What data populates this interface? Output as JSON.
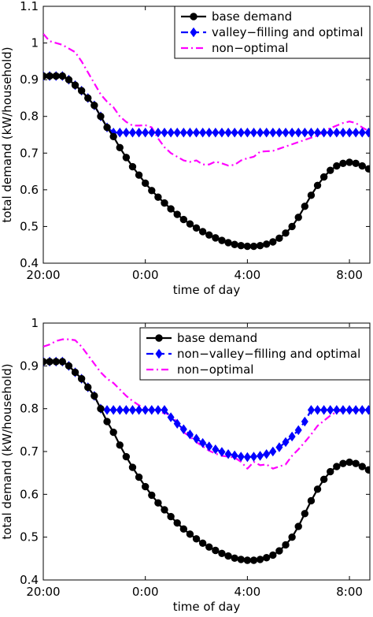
{
  "chart_data": [
    {
      "type": "line",
      "title": "",
      "xlabel": "time of day",
      "ylabel": "total demand (kW/household)",
      "xlim": [
        20,
        32.8
      ],
      "ylim": [
        0.4,
        1.1
      ],
      "x_ticks": [
        {
          "value": 20,
          "label": "20:00"
        },
        {
          "value": 24,
          "label": "0:00"
        },
        {
          "value": 28,
          "label": "4:00"
        },
        {
          "value": 32,
          "label": "8:00"
        }
      ],
      "y_ticks": [
        {
          "value": 0.4,
          "label": "0.4"
        },
        {
          "value": 0.5,
          "label": "0.5"
        },
        {
          "value": 0.6,
          "label": "0.6"
        },
        {
          "value": 0.7,
          "label": "0.7"
        },
        {
          "value": 0.8,
          "label": "0.8"
        },
        {
          "value": 0.9,
          "label": "0.9"
        },
        {
          "value": 1.0,
          "label": "1"
        },
        {
          "value": 1.1,
          "label": "1.1"
        }
      ],
      "grid": false,
      "legend_position": "top-right",
      "series": [
        {
          "name": "base demand",
          "color": "#000000",
          "marker": "circle",
          "style": "solid",
          "x": [
            20.0,
            20.25,
            20.5,
            20.75,
            21.0,
            21.25,
            21.5,
            21.75,
            22.0,
            22.25,
            22.5,
            22.75,
            23.0,
            23.25,
            23.5,
            23.75,
            24.0,
            24.25,
            24.5,
            24.75,
            25.0,
            25.25,
            25.5,
            25.75,
            26.0,
            26.25,
            26.5,
            26.75,
            27.0,
            27.25,
            27.5,
            27.75,
            28.0,
            28.25,
            28.5,
            28.75,
            29.0,
            29.25,
            29.5,
            29.75,
            30.0,
            30.25,
            30.5,
            30.75,
            31.0,
            31.25,
            31.5,
            31.75,
            32.0,
            32.25,
            32.5,
            32.75
          ],
          "y": [
            0.91,
            0.91,
            0.91,
            0.91,
            0.9,
            0.885,
            0.87,
            0.85,
            0.83,
            0.8,
            0.77,
            0.745,
            0.715,
            0.688,
            0.663,
            0.64,
            0.618,
            0.598,
            0.58,
            0.564,
            0.548,
            0.533,
            0.519,
            0.507,
            0.496,
            0.486,
            0.477,
            0.469,
            0.462,
            0.456,
            0.451,
            0.448,
            0.446,
            0.446,
            0.448,
            0.452,
            0.458,
            0.468,
            0.482,
            0.5,
            0.525,
            0.555,
            0.585,
            0.612,
            0.635,
            0.653,
            0.665,
            0.672,
            0.675,
            0.672,
            0.665,
            0.657
          ]
        },
        {
          "name": "valley−filling and optimal",
          "color": "#0000ff",
          "marker": "diamond",
          "style": "dashed",
          "x": [
            20.0,
            20.25,
            20.5,
            20.75,
            21.0,
            21.25,
            21.5,
            21.75,
            22.0,
            22.25,
            22.5,
            22.75,
            23.0,
            23.25,
            23.5,
            23.75,
            24.0,
            24.25,
            24.5,
            24.75,
            25.0,
            25.25,
            25.5,
            25.75,
            26.0,
            26.25,
            26.5,
            26.75,
            27.0,
            27.25,
            27.5,
            27.75,
            28.0,
            28.25,
            28.5,
            28.75,
            29.0,
            29.25,
            29.5,
            29.75,
            30.0,
            30.25,
            30.5,
            30.75,
            31.0,
            31.25,
            31.5,
            31.75,
            32.0,
            32.25,
            32.5,
            32.75
          ],
          "y": [
            0.91,
            0.91,
            0.91,
            0.91,
            0.9,
            0.885,
            0.87,
            0.85,
            0.83,
            0.8,
            0.77,
            0.756,
            0.756,
            0.756,
            0.756,
            0.756,
            0.756,
            0.756,
            0.756,
            0.756,
            0.756,
            0.756,
            0.756,
            0.756,
            0.756,
            0.756,
            0.756,
            0.756,
            0.756,
            0.756,
            0.756,
            0.756,
            0.756,
            0.756,
            0.756,
            0.756,
            0.756,
            0.756,
            0.756,
            0.756,
            0.756,
            0.756,
            0.756,
            0.756,
            0.756,
            0.756,
            0.756,
            0.756,
            0.756,
            0.756,
            0.756,
            0.756
          ]
        },
        {
          "name": "non−optimal",
          "color": "#ff00ff",
          "marker": "none",
          "style": "dashdot",
          "x": [
            20.0,
            20.25,
            20.5,
            20.75,
            21.0,
            21.25,
            21.5,
            21.75,
            22.0,
            22.25,
            22.5,
            22.75,
            23.0,
            23.25,
            23.5,
            23.75,
            24.0,
            24.25,
            24.5,
            24.75,
            25.0,
            25.25,
            25.5,
            25.75,
            26.0,
            26.25,
            26.5,
            26.75,
            27.0,
            27.25,
            27.5,
            27.75,
            28.0,
            28.25,
            28.5,
            28.75,
            29.0,
            29.25,
            29.5,
            29.75,
            30.0,
            30.25,
            30.5,
            30.75,
            31.0,
            31.25,
            31.5,
            31.75,
            32.0,
            32.25,
            32.5,
            32.75
          ],
          "y": [
            1.025,
            1.005,
            1.0,
            0.995,
            0.985,
            0.975,
            0.95,
            0.92,
            0.89,
            0.86,
            0.84,
            0.825,
            0.8,
            0.785,
            0.775,
            0.775,
            0.776,
            0.77,
            0.74,
            0.716,
            0.7,
            0.69,
            0.68,
            0.676,
            0.68,
            0.669,
            0.669,
            0.677,
            0.672,
            0.666,
            0.668,
            0.68,
            0.686,
            0.69,
            0.704,
            0.705,
            0.706,
            0.712,
            0.718,
            0.724,
            0.73,
            0.736,
            0.742,
            0.748,
            0.758,
            0.768,
            0.775,
            0.782,
            0.786,
            0.782,
            0.77,
            0.76
          ]
        }
      ]
    },
    {
      "type": "line",
      "title": "",
      "xlabel": "time of day",
      "ylabel": "total demand (kW/household)",
      "xlim": [
        20,
        32.8
      ],
      "ylim": [
        0.4,
        1.0
      ],
      "x_ticks": [
        {
          "value": 20,
          "label": "20:00"
        },
        {
          "value": 24,
          "label": "0:00"
        },
        {
          "value": 28,
          "label": "4:00"
        },
        {
          "value": 32,
          "label": "8:00"
        }
      ],
      "y_ticks": [
        {
          "value": 0.4,
          "label": "0.4"
        },
        {
          "value": 0.5,
          "label": "0.5"
        },
        {
          "value": 0.6,
          "label": "0.6"
        },
        {
          "value": 0.7,
          "label": "0.7"
        },
        {
          "value": 0.8,
          "label": "0.8"
        },
        {
          "value": 0.9,
          "label": "0.9"
        },
        {
          "value": 1.0,
          "label": "1"
        }
      ],
      "grid": false,
      "legend_position": "top-right",
      "series": [
        {
          "name": "base demand",
          "color": "#000000",
          "marker": "circle",
          "style": "solid",
          "x": [
            20.0,
            20.25,
            20.5,
            20.75,
            21.0,
            21.25,
            21.5,
            21.75,
            22.0,
            22.25,
            22.5,
            22.75,
            23.0,
            23.25,
            23.5,
            23.75,
            24.0,
            24.25,
            24.5,
            24.75,
            25.0,
            25.25,
            25.5,
            25.75,
            26.0,
            26.25,
            26.5,
            26.75,
            27.0,
            27.25,
            27.5,
            27.75,
            28.0,
            28.25,
            28.5,
            28.75,
            29.0,
            29.25,
            29.5,
            29.75,
            30.0,
            30.25,
            30.5,
            30.75,
            31.0,
            31.25,
            31.5,
            31.75,
            32.0,
            32.25,
            32.5,
            32.75
          ],
          "y": [
            0.91,
            0.91,
            0.91,
            0.91,
            0.9,
            0.885,
            0.87,
            0.85,
            0.83,
            0.8,
            0.77,
            0.745,
            0.715,
            0.688,
            0.663,
            0.64,
            0.618,
            0.598,
            0.58,
            0.564,
            0.548,
            0.533,
            0.519,
            0.507,
            0.496,
            0.486,
            0.477,
            0.469,
            0.462,
            0.456,
            0.451,
            0.448,
            0.446,
            0.446,
            0.448,
            0.452,
            0.458,
            0.468,
            0.482,
            0.5,
            0.525,
            0.555,
            0.585,
            0.612,
            0.635,
            0.653,
            0.665,
            0.672,
            0.675,
            0.672,
            0.665,
            0.657
          ]
        },
        {
          "name": "non−valley−filling and optimal",
          "color": "#0000ff",
          "marker": "diamond",
          "style": "dashed",
          "x": [
            20.0,
            20.25,
            20.5,
            20.75,
            21.0,
            21.25,
            21.5,
            21.75,
            22.0,
            22.25,
            22.5,
            22.75,
            23.0,
            23.25,
            23.5,
            23.75,
            24.0,
            24.25,
            24.5,
            24.75,
            25.0,
            25.25,
            25.5,
            25.75,
            26.0,
            26.25,
            26.5,
            26.75,
            27.0,
            27.25,
            27.5,
            27.75,
            28.0,
            28.25,
            28.5,
            28.75,
            29.0,
            29.25,
            29.5,
            29.75,
            30.0,
            30.25,
            30.5,
            30.75,
            31.0,
            31.25,
            31.5,
            31.75,
            32.0,
            32.25,
            32.5,
            32.75
          ],
          "y": [
            0.91,
            0.91,
            0.91,
            0.91,
            0.9,
            0.885,
            0.87,
            0.85,
            0.83,
            0.8,
            0.797,
            0.797,
            0.797,
            0.797,
            0.797,
            0.797,
            0.797,
            0.797,
            0.797,
            0.797,
            0.78,
            0.765,
            0.752,
            0.74,
            0.73,
            0.72,
            0.712,
            0.705,
            0.699,
            0.694,
            0.691,
            0.688,
            0.687,
            0.688,
            0.69,
            0.694,
            0.7,
            0.71,
            0.722,
            0.735,
            0.75,
            0.77,
            0.797,
            0.797,
            0.797,
            0.797,
            0.797,
            0.797,
            0.797,
            0.797,
            0.797,
            0.797
          ]
        },
        {
          "name": "non−optimal",
          "color": "#ff00ff",
          "marker": "none",
          "style": "dashdot",
          "x": [
            20.0,
            20.25,
            20.5,
            20.75,
            21.0,
            21.25,
            21.5,
            21.75,
            22.0,
            22.25,
            22.5,
            22.75,
            23.0,
            23.25,
            23.5,
            23.75,
            24.0,
            24.25,
            24.5,
            24.75,
            25.0,
            25.25,
            25.5,
            25.75,
            26.0,
            26.25,
            26.5,
            26.75,
            27.0,
            27.25,
            27.5,
            27.75,
            28.0,
            28.25,
            28.5,
            28.75,
            29.0,
            29.25,
            29.5,
            29.75,
            30.0,
            30.25,
            30.5,
            30.75,
            31.0,
            31.25,
            31.5,
            31.75,
            32.0,
            32.25,
            32.5,
            32.75
          ],
          "y": [
            0.945,
            0.95,
            0.958,
            0.962,
            0.962,
            0.96,
            0.945,
            0.925,
            0.905,
            0.885,
            0.87,
            0.86,
            0.845,
            0.83,
            0.818,
            0.808,
            0.8,
            0.795,
            0.792,
            0.79,
            0.785,
            0.768,
            0.745,
            0.735,
            0.722,
            0.712,
            0.702,
            0.695,
            0.69,
            0.688,
            0.686,
            0.676,
            0.66,
            0.676,
            0.668,
            0.67,
            0.66,
            0.665,
            0.67,
            0.69,
            0.705,
            0.722,
            0.74,
            0.76,
            0.772,
            0.784,
            0.793,
            0.796,
            0.796,
            0.796,
            0.796,
            0.796
          ]
        }
      ]
    }
  ]
}
